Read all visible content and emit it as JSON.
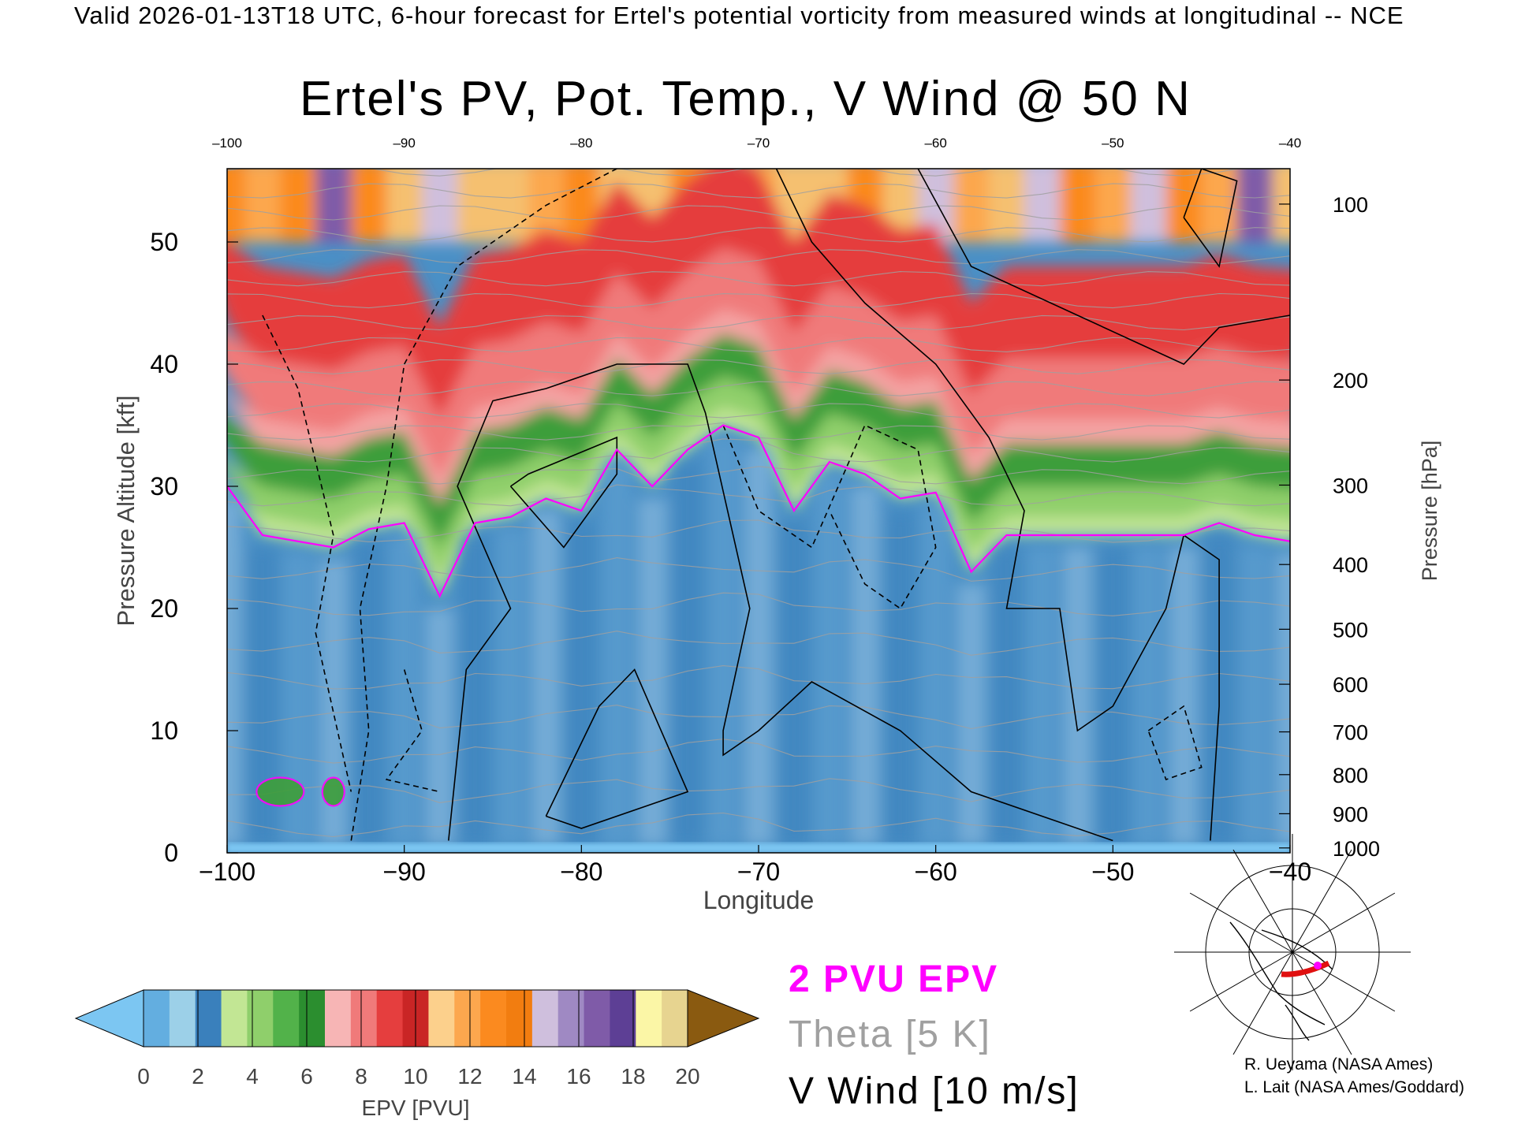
{
  "header": "Valid 2026-01-13T18 UTC, 6-hour forecast for Ertel's potential vorticity from measured winds at longitudinal -- NCE",
  "colors": {
    "pv2_contour": "#ff00ff",
    "theta_contour": "#a0a0a0",
    "wind_contour": "#000000"
  },
  "chart_data": {
    "type": "heatmap",
    "title": "Ertel's PV, Pot. Temp., V Wind @ 50 N",
    "xlabel": "Longitude",
    "ylabel_left": "Pressure Altitude [kft]",
    "ylabel_right": "Pressure [hPa]",
    "xlim": [
      -100,
      -40
    ],
    "ylim": [
      0,
      56
    ],
    "x_ticks": [
      -100,
      -90,
      -80,
      -70,
      -60,
      -50,
      -40
    ],
    "x_tick_labels": [
      "−100",
      "−90",
      "−80",
      "−70",
      "−60",
      "−50",
      "−40"
    ],
    "y_ticks_kft": [
      0,
      10,
      20,
      30,
      40,
      50
    ],
    "pressure_ticks": [
      {
        "hPa": 100,
        "kft": 53.1
      },
      {
        "hPa": 200,
        "kft": 38.7
      },
      {
        "hPa": 300,
        "kft": 30.1
      },
      {
        "hPa": 400,
        "kft": 23.6
      },
      {
        "hPa": 500,
        "kft": 18.3
      },
      {
        "hPa": 600,
        "kft": 13.8
      },
      {
        "hPa": 700,
        "kft": 9.9
      },
      {
        "hPa": 800,
        "kft": 6.4
      },
      {
        "hPa": 900,
        "kft": 3.2
      },
      {
        "hPa": 1000,
        "kft": 0.4
      }
    ],
    "pv_field": {
      "x": [
        -100,
        -98,
        -96,
        -94,
        -92,
        -90,
        -88,
        -86,
        -84,
        -82,
        -80,
        -78,
        -76,
        -74,
        -72,
        -70,
        -68,
        -66,
        -64,
        -62,
        -60,
        -58,
        -56,
        -54,
        -52,
        -50,
        -48,
        -46,
        -44,
        -42,
        -40
      ],
      "tropopause_2pvu_kft": [
        30,
        26,
        25.5,
        25,
        26.5,
        27,
        21,
        27,
        27.5,
        29,
        28,
        33,
        30,
        33,
        35,
        34,
        28,
        32,
        31,
        29,
        29.5,
        23,
        26,
        26,
        26,
        26,
        26,
        26,
        27,
        26,
        25.5
      ],
      "stratosphere_pv": [
        11,
        12,
        10,
        16,
        11,
        8,
        15,
        9,
        9,
        12,
        10,
        8,
        9,
        11,
        10,
        12,
        9,
        8,
        10,
        9,
        15,
        12,
        9,
        15,
        10,
        12,
        14,
        11,
        13,
        17,
        9
      ]
    },
    "colorbar": {
      "label": "EPV [PVU]",
      "min": 0,
      "max": 20,
      "ticks": [
        0,
        2,
        4,
        6,
        8,
        10,
        12,
        14,
        16,
        18,
        20
      ],
      "colors": [
        "#63aee0",
        "#9cd0e8",
        "#3a80bc",
        "#c2e694",
        "#8fcf6b",
        "#52b24a",
        "#2b8e2f",
        "#f7b5b5",
        "#f07a7a",
        "#e53e3e",
        "#c92525",
        "#fcd08c",
        "#fca74e",
        "#fb8a1f",
        "#f27d10",
        "#cfbfdd",
        "#9f89c3",
        "#7f5ba8",
        "#5d3f95",
        "#fbf6a6",
        "#e7d490"
      ],
      "under_color": "#7cc6f2",
      "over_color": "#8a5a10"
    },
    "pv_islands": [
      {
        "lon": -97,
        "kft": 5,
        "pv": 2.4
      },
      {
        "lon": -94,
        "kft": 5,
        "pv": 2.4
      }
    ],
    "wind_contours": [
      {
        "level": 0,
        "style": "solid",
        "points": [
          [
            -87.5,
            1
          ],
          [
            -86.5,
            15
          ],
          [
            -84,
            20
          ],
          [
            -87,
            30
          ],
          [
            -85,
            37
          ],
          [
            -82,
            38
          ],
          [
            -78,
            40
          ],
          [
            -74,
            40
          ],
          [
            -73,
            36
          ],
          [
            -70.5,
            20
          ],
          [
            -72,
            10
          ],
          [
            -72,
            8
          ],
          [
            -70,
            10
          ],
          [
            -67,
            14
          ],
          [
            -62,
            10
          ],
          [
            -58,
            5
          ],
          [
            -50,
            1
          ]
        ]
      },
      {
        "level": 0,
        "style": "solid",
        "points": [
          [
            -69,
            56
          ],
          [
            -67,
            50
          ],
          [
            -64,
            45
          ],
          [
            -60,
            40
          ],
          [
            -57,
            34
          ],
          [
            -55,
            28
          ],
          [
            -56,
            20
          ],
          [
            -53,
            20
          ],
          [
            -52,
            10
          ],
          [
            -50,
            12
          ],
          [
            -47,
            20
          ],
          [
            -46,
            26
          ],
          [
            -44,
            24
          ],
          [
            -44,
            12
          ],
          [
            -44.5,
            1
          ]
        ]
      },
      {
        "level": 10,
        "style": "solid",
        "points": [
          [
            -84,
            30
          ],
          [
            -81,
            25
          ],
          [
            -78,
            31
          ],
          [
            -78,
            34
          ],
          [
            -83,
            31
          ],
          [
            -84,
            30
          ]
        ]
      },
      {
        "level": 10,
        "style": "solid",
        "points": [
          [
            -82,
            3
          ],
          [
            -79,
            12
          ],
          [
            -77,
            15
          ],
          [
            -74,
            5
          ],
          [
            -80,
            2
          ],
          [
            -82,
            3
          ]
        ]
      },
      {
        "level": 10,
        "style": "solid",
        "points": [
          [
            -61,
            56
          ],
          [
            -58,
            48
          ],
          [
            -52,
            44
          ],
          [
            -46,
            40
          ],
          [
            -44,
            43
          ],
          [
            -40,
            44
          ]
        ]
      },
      {
        "level": 10,
        "style": "solid",
        "points": [
          [
            -46,
            52
          ],
          [
            -45,
            56
          ],
          [
            -43,
            55
          ],
          [
            -44,
            48
          ],
          [
            -46,
            52
          ]
        ]
      },
      {
        "level": -10,
        "style": "dashed",
        "points": [
          [
            -93,
            1
          ],
          [
            -92,
            10
          ],
          [
            -92.5,
            20
          ],
          [
            -91,
            30
          ],
          [
            -90,
            40
          ],
          [
            -87,
            48
          ],
          [
            -82,
            53
          ],
          [
            -78,
            56
          ]
        ]
      },
      {
        "level": -10,
        "style": "dashed",
        "points": [
          [
            -98,
            44
          ],
          [
            -96,
            38
          ],
          [
            -94,
            26
          ],
          [
            -95,
            18
          ],
          [
            -93,
            5
          ]
        ]
      },
      {
        "level": -10,
        "style": "dashed",
        "points": [
          [
            -90,
            15
          ],
          [
            -89,
            10
          ],
          [
            -91,
            6
          ],
          [
            -88,
            5
          ]
        ]
      },
      {
        "level": -10,
        "style": "dashed",
        "points": [
          [
            -72,
            35
          ],
          [
            -70,
            28
          ],
          [
            -67,
            25
          ],
          [
            -64,
            35
          ],
          [
            -61,
            33
          ],
          [
            -60,
            25
          ],
          [
            -62,
            20
          ],
          [
            -64,
            22
          ],
          [
            -66,
            28
          ]
        ]
      },
      {
        "level": -10,
        "style": "dashed",
        "points": [
          [
            -48,
            10
          ],
          [
            -46,
            12
          ],
          [
            -45,
            7
          ],
          [
            -47,
            6
          ],
          [
            -48,
            10
          ]
        ]
      }
    ],
    "theta_levels_k": [
      300,
      310,
      320,
      330,
      340,
      350,
      360,
      370,
      380,
      390,
      400
    ]
  },
  "colorbar_tick_labels": [
    "0",
    "2",
    "4",
    "6",
    "8",
    "10",
    "12",
    "14",
    "16",
    "18",
    "20"
  ],
  "legend": {
    "pv": "2 PVU EPV",
    "theta": "Theta [5 K]",
    "wind": "V Wind [10 m/s]"
  },
  "credits": [
    "R. Ueyama (NASA Ames)",
    "L. Lait (NASA Ames/Goddard)"
  ],
  "inset_map": {
    "description_icon": "polar-map-icon",
    "section_color": "#e01010",
    "marker_color": "#ff00ff"
  }
}
